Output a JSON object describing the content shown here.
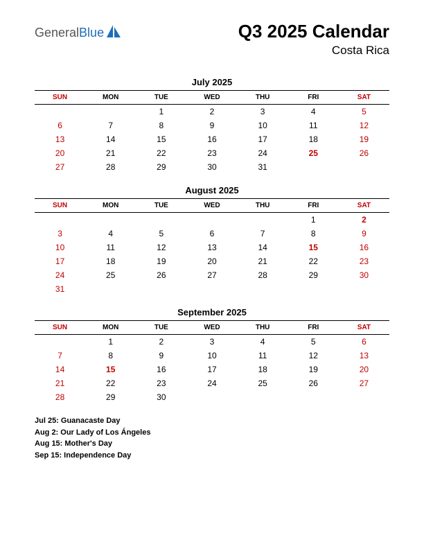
{
  "logo": {
    "general": "General",
    "blue": "Blue",
    "general_color": "#555555",
    "blue_color": "#1d6fb8",
    "icon_color": "#1d6fb8"
  },
  "header": {
    "title": "Q3 2025 Calendar",
    "subtitle": "Costa Rica"
  },
  "colors": {
    "weekend": "#c00000",
    "holiday": "#c00000",
    "text": "#000000",
    "background": "#ffffff",
    "rule": "#000000"
  },
  "day_headers": [
    "SUN",
    "MON",
    "TUE",
    "WED",
    "THU",
    "FRI",
    "SAT"
  ],
  "weekend_columns": [
    0,
    6
  ],
  "months": [
    {
      "title": "July 2025",
      "weeks": [
        [
          "",
          "",
          "1",
          "2",
          "3",
          "4",
          "5"
        ],
        [
          "6",
          "7",
          "8",
          "9",
          "10",
          "11",
          "12"
        ],
        [
          "13",
          "14",
          "15",
          "16",
          "17",
          "18",
          "19"
        ],
        [
          "20",
          "21",
          "22",
          "23",
          "24",
          "25",
          "26"
        ],
        [
          "27",
          "28",
          "29",
          "30",
          "31",
          "",
          ""
        ]
      ],
      "holidays": [
        [
          3,
          5
        ]
      ]
    },
    {
      "title": "August 2025",
      "weeks": [
        [
          "",
          "",
          "",
          "",
          "",
          "1",
          "2"
        ],
        [
          "3",
          "4",
          "5",
          "6",
          "7",
          "8",
          "9"
        ],
        [
          "10",
          "11",
          "12",
          "13",
          "14",
          "15",
          "16"
        ],
        [
          "17",
          "18",
          "19",
          "20",
          "21",
          "22",
          "23"
        ],
        [
          "24",
          "25",
          "26",
          "27",
          "28",
          "29",
          "30"
        ],
        [
          "31",
          "",
          "",
          "",
          "",
          "",
          ""
        ]
      ],
      "holidays": [
        [
          0,
          6
        ],
        [
          2,
          5
        ]
      ]
    },
    {
      "title": "September 2025",
      "weeks": [
        [
          "",
          "1",
          "2",
          "3",
          "4",
          "5",
          "6"
        ],
        [
          "7",
          "8",
          "9",
          "10",
          "11",
          "12",
          "13"
        ],
        [
          "14",
          "15",
          "16",
          "17",
          "18",
          "19",
          "20"
        ],
        [
          "21",
          "22",
          "23",
          "24",
          "25",
          "26",
          "27"
        ],
        [
          "28",
          "29",
          "30",
          "",
          "",
          "",
          ""
        ]
      ],
      "holidays": [
        [
          2,
          1
        ]
      ]
    }
  ],
  "holiday_list": [
    "Jul 25: Guanacaste Day",
    "Aug 2: Our Lady of Los Ángeles",
    "Aug 15: Mother's Day",
    "Sep 15: Independence Day"
  ]
}
